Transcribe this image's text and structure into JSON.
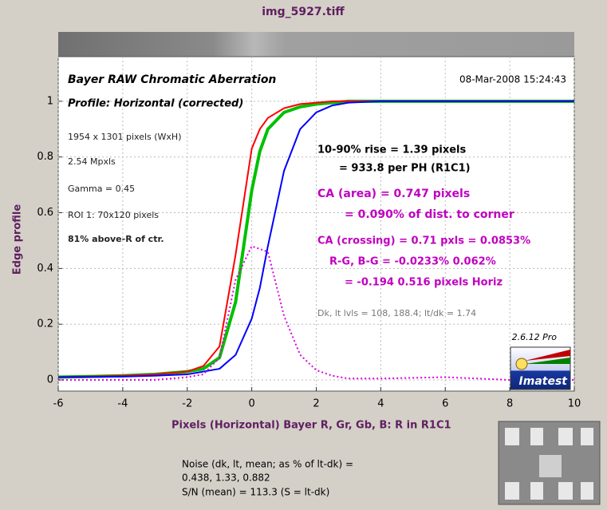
{
  "chart_data": {
    "type": "line",
    "title": "img_5927.tiff",
    "plot_title": "Bayer RAW Chromatic Aberration",
    "timestamp": "08-Mar-2008 15:24:43",
    "profile": "Profile: Horizontal (corrected)",
    "xlabel": "Pixels (Horizontal)  Bayer R, Gr, Gb, B:  R in R1C1",
    "ylabel": "Edge profile",
    "x": [
      -6,
      -4,
      -3,
      -2,
      -1.5,
      -1,
      -0.5,
      0,
      0.25,
      0.5,
      1,
      1.5,
      2,
      2.5,
      3,
      4,
      6,
      8,
      10
    ],
    "series": [
      {
        "color": "#ff0000",
        "width": 2,
        "dash": "solid",
        "values": [
          0.01,
          0.015,
          0.02,
          0.03,
          0.05,
          0.12,
          0.45,
          0.83,
          0.9,
          0.94,
          0.975,
          0.99,
          0.995,
          1.0,
          1.0,
          1.0,
          1.0,
          1.0,
          1.0
        ]
      },
      {
        "color": "#00c000",
        "width": 4,
        "dash": "solid",
        "values": [
          0.01,
          0.015,
          0.02,
          0.03,
          0.04,
          0.08,
          0.28,
          0.68,
          0.82,
          0.9,
          0.96,
          0.98,
          0.99,
          0.995,
          1.0,
          1.0,
          1.0,
          1.0,
          1.0
        ]
      },
      {
        "color": "#0000ff",
        "width": 2,
        "dash": "solid",
        "values": [
          0.01,
          0.012,
          0.015,
          0.02,
          0.03,
          0.04,
          0.09,
          0.22,
          0.33,
          0.48,
          0.75,
          0.9,
          0.96,
          0.985,
          0.995,
          1.0,
          1.0,
          1.0,
          1.0
        ]
      },
      {
        "color": "#e000e0",
        "width": 2,
        "dash": "dotted",
        "values": [
          0,
          0,
          0,
          0.01,
          0.02,
          0.08,
          0.36,
          0.48,
          0.47,
          0.46,
          0.23,
          0.09,
          0.035,
          0.015,
          0.005,
          0.005,
          0.01,
          0,
          0
        ]
      }
    ],
    "xlim": [
      -6,
      10
    ],
    "ylim": [
      -0.04,
      1.16
    ],
    "xticks": [
      -6,
      -4,
      -2,
      0,
      2,
      4,
      6,
      8,
      10
    ],
    "yticks": [
      0,
      0.2,
      0.4,
      0.6,
      0.8,
      1
    ],
    "grid": true,
    "info": [
      "1954 x 1301 pixels (WxH)",
      "2.54 Mpxls",
      "Gamma = 0.45",
      "ROI 1: 70x120 pixels",
      "81% above-R of ctr."
    ],
    "annotations": [
      "10-90% rise = 1.39 pixels",
      "= 933.8 per PH  (R1C1)",
      "CA (area) = 0.747 pixels",
      "= 0.090% of dist. to corner",
      "CA (crossing) = 0.71 pxls = 0.0853%",
      "R-G, B-G = -0.0233%  0.062%",
      "= -0.194  0.516 pixels Horiz"
    ],
    "levels": "Dk, lt lvls = 108, 188.4;  lt/dk = 1.74",
    "version": "2.6.12  Pro",
    "logo": "Imatest",
    "noise": [
      "Noise (dk, lt, mean; as % of lt-dk) =",
      "0.438,  1.33,  0.882",
      "S/N (mean) = 113.3  (S = lt-dk)"
    ]
  }
}
